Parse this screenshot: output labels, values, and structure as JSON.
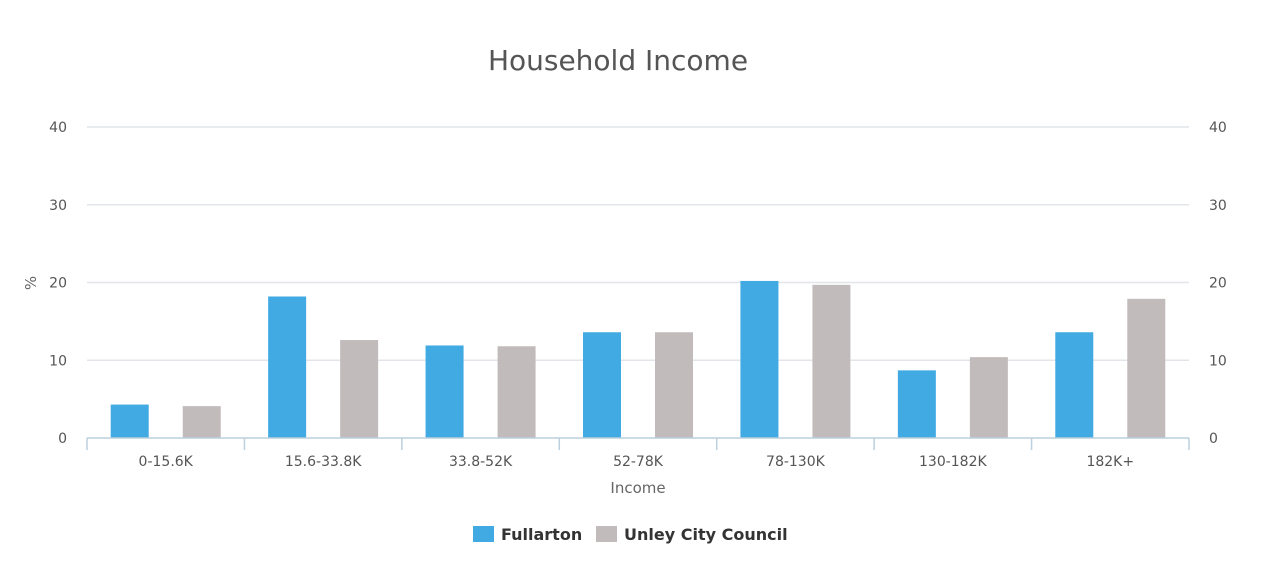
{
  "chart_data": {
    "type": "bar",
    "title": "Household Income",
    "xlabel": "Income",
    "ylabel": "%",
    "ylim": [
      0,
      40
    ],
    "yticks": [
      0,
      10,
      20,
      30,
      40
    ],
    "secondary_yaxis": true,
    "grid": true,
    "legend_position": "bottom",
    "categories": [
      "0-15.6K",
      "15.6-33.8K",
      "33.8-52K",
      "52-78K",
      "78-130K",
      "130-182K",
      "182K+"
    ],
    "series": [
      {
        "name": "Fullarton",
        "color": "#41aae3",
        "values": [
          4.3,
          18.2,
          11.9,
          13.6,
          20.2,
          8.7,
          13.6
        ]
      },
      {
        "name": "Unley City Council",
        "color": "#c2bbbb",
        "values": [
          4.1,
          12.6,
          11.8,
          13.6,
          19.7,
          10.4,
          17.9
        ]
      }
    ]
  }
}
